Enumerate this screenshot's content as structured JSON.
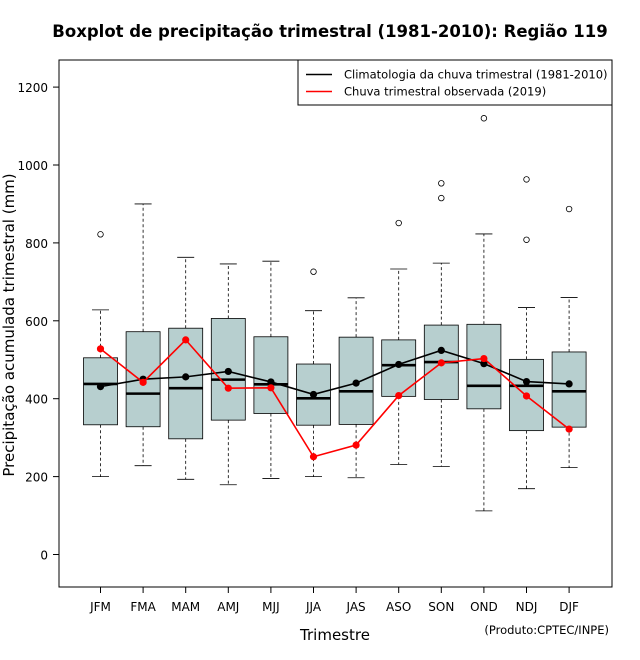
{
  "chart_data": {
    "type": "boxplot",
    "title": "Boxplot de precipitação trimestral (1981-2010): Região 119",
    "xlabel": "Trimestre",
    "ylabel": "Precipitação acumulada trimestral (mm)",
    "credit": "(Produto:CPTEC/INPE)",
    "ylim": [
      -80,
      1265
    ],
    "yticks": [
      0,
      200,
      400,
      600,
      800,
      1000,
      1200
    ],
    "categories": [
      "JFM",
      "FMA",
      "MAM",
      "AMJ",
      "MJJ",
      "JJA",
      "JAS",
      "ASO",
      "SON",
      "OND",
      "NDJ",
      "DJF"
    ],
    "boxes": [
      {
        "whisker_low": 200,
        "q1": 333,
        "median": 438,
        "q3": 505,
        "whisker_high": 628,
        "outliers": [
          822
        ]
      },
      {
        "whisker_low": 228,
        "q1": 328,
        "median": 413,
        "q3": 572,
        "whisker_high": 900,
        "outliers": []
      },
      {
        "whisker_low": 193,
        "q1": 297,
        "median": 427,
        "q3": 581,
        "whisker_high": 763,
        "outliers": []
      },
      {
        "whisker_low": 179,
        "q1": 345,
        "median": 449,
        "q3": 606,
        "whisker_high": 746,
        "outliers": []
      },
      {
        "whisker_low": 195,
        "q1": 362,
        "median": 437,
        "q3": 559,
        "whisker_high": 753,
        "outliers": []
      },
      {
        "whisker_low": 200,
        "q1": 332,
        "median": 401,
        "q3": 489,
        "whisker_high": 626,
        "outliers": [
          726
        ]
      },
      {
        "whisker_low": 197,
        "q1": 334,
        "median": 419,
        "q3": 558,
        "whisker_high": 659,
        "outliers": []
      },
      {
        "whisker_low": 231,
        "q1": 406,
        "median": 486,
        "q3": 551,
        "whisker_high": 733,
        "outliers": [
          851
        ]
      },
      {
        "whisker_low": 226,
        "q1": 398,
        "median": 494,
        "q3": 589,
        "whisker_high": 748,
        "outliers": [
          915,
          953
        ]
      },
      {
        "whisker_low": 112,
        "q1": 374,
        "median": 433,
        "q3": 591,
        "whisker_high": 823,
        "outliers": [
          1120
        ]
      },
      {
        "whisker_low": 169,
        "q1": 318,
        "median": 433,
        "q3": 501,
        "whisker_high": 634,
        "outliers": [
          808,
          963
        ]
      },
      {
        "whisker_low": 223,
        "q1": 327,
        "median": 419,
        "q3": 520,
        "whisker_high": 660,
        "outliers": [
          887
        ]
      }
    ],
    "series": [
      {
        "name": "Climatologia da chuva trimestral (1981-2010)",
        "color": "#000000",
        "values": [
          431,
          450,
          456,
          470,
          443,
          411,
          440,
          488,
          524,
          490,
          444,
          438
        ]
      },
      {
        "name": "Chuva trimestral observada (2019)",
        "color": "#ff0000",
        "values": [
          528,
          442,
          551,
          427,
          428,
          251,
          281,
          408,
          492,
          503,
          407,
          322
        ]
      }
    ],
    "box_fill": "#b7cfcf",
    "legend_position": "top-right"
  }
}
